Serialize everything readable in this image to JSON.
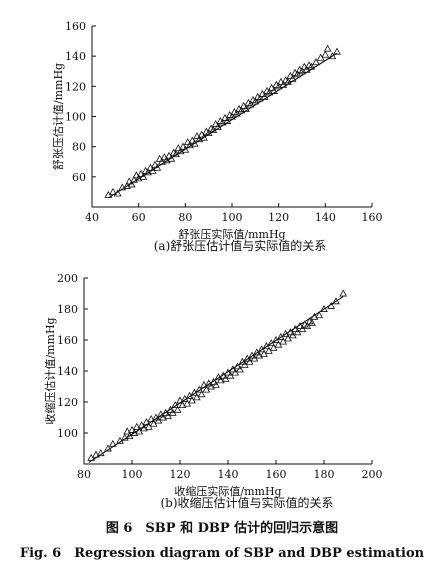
{
  "caption_cn": "图 6　SBP 和 DBP 估计的回归示意图",
  "caption_en": "Fig. 6　Regression diagram of SBP and DBP estimation",
  "chart_data": [
    {
      "type": "scatter",
      "panel_caption": "(a)舒张压估计值与实际值的关系",
      "xlabel": "舒张压实际值/mmHg",
      "ylabel": "舒张压估计值/mmHg",
      "xlim": [
        40,
        160
      ],
      "ylim": [
        40,
        160
      ],
      "xticks": [
        40,
        60,
        80,
        100,
        120,
        140,
        160
      ],
      "yticks": [
        60,
        80,
        100,
        120,
        140,
        160
      ],
      "marker": "triangle",
      "grid": false,
      "fit_line": {
        "x": [
          47,
          145
        ],
        "y": [
          46,
          142
        ]
      },
      "x": [
        47,
        49,
        51,
        53,
        55,
        56,
        57,
        58,
        59,
        60,
        61,
        62,
        63,
        64,
        65,
        66,
        67,
        68,
        69,
        70,
        71,
        72,
        73,
        74,
        75,
        76,
        77,
        78,
        79,
        80,
        81,
        82,
        83,
        84,
        85,
        86,
        87,
        88,
        89,
        90,
        91,
        92,
        93,
        94,
        95,
        96,
        97,
        98,
        99,
        100,
        101,
        102,
        103,
        104,
        105,
        106,
        107,
        108,
        109,
        110,
        111,
        112,
        113,
        114,
        115,
        116,
        117,
        118,
        119,
        120,
        121,
        122,
        123,
        124,
        125,
        126,
        127,
        128,
        129,
        130,
        131,
        132,
        133,
        134,
        136,
        138,
        140,
        141,
        143,
        145
      ],
      "y": [
        48,
        50,
        49,
        53,
        54,
        57,
        55,
        58,
        61,
        59,
        62,
        60,
        64,
        63,
        66,
        64,
        68,
        66,
        72,
        70,
        73,
        71,
        74,
        72,
        76,
        75,
        79,
        77,
        80,
        78,
        83,
        81,
        84,
        82,
        87,
        85,
        88,
        86,
        90,
        89,
        92,
        91,
        95,
        93,
        97,
        96,
        99,
        97,
        101,
        100,
        103,
        102,
        105,
        104,
        107,
        105,
        109,
        108,
        111,
        110,
        113,
        112,
        115,
        113,
        117,
        116,
        119,
        117,
        121,
        120,
        123,
        121,
        124,
        123,
        127,
        125,
        129,
        128,
        131,
        130,
        133,
        131,
        134,
        133,
        136,
        139,
        141,
        145,
        140,
        143
      ]
    },
    {
      "type": "scatter",
      "panel_caption": "(b)收缩压估计值与实际值的关系",
      "xlabel": "收缩压实际值/mmHg",
      "ylabel": "收缩压估计值/mmHg",
      "xlim": [
        80,
        200
      ],
      "ylim": [
        80,
        200
      ],
      "xticks": [
        80,
        100,
        120,
        140,
        160,
        180,
        200
      ],
      "yticks": [
        100,
        120,
        140,
        160,
        180,
        200
      ],
      "marker": "triangle",
      "grid": false,
      "fit_line": {
        "x": [
          82,
          188
        ],
        "y": [
          81,
          188
        ]
      },
      "x": [
        83,
        85,
        87,
        90,
        92,
        95,
        97,
        98,
        99,
        100,
        101,
        102,
        103,
        104,
        105,
        106,
        107,
        108,
        109,
        110,
        111,
        112,
        113,
        114,
        115,
        116,
        117,
        118,
        119,
        120,
        121,
        122,
        123,
        124,
        125,
        126,
        127,
        128,
        129,
        130,
        131,
        132,
        133,
        134,
        135,
        136,
        137,
        138,
        139,
        140,
        141,
        142,
        143,
        144,
        145,
        146,
        147,
        148,
        149,
        150,
        151,
        152,
        153,
        154,
        155,
        156,
        157,
        158,
        159,
        160,
        161,
        162,
        163,
        164,
        165,
        166,
        167,
        168,
        169,
        170,
        171,
        172,
        173,
        174,
        175,
        176,
        178,
        180,
        183,
        185,
        188
      ],
      "y": [
        84,
        86,
        87,
        90,
        93,
        95,
        97,
        101,
        98,
        102,
        100,
        104,
        101,
        105,
        103,
        107,
        104,
        109,
        106,
        110,
        108,
        112,
        110,
        113,
        111,
        115,
        113,
        118,
        115,
        121,
        118,
        122,
        119,
        124,
        121,
        126,
        123,
        128,
        125,
        131,
        128,
        132,
        130,
        133,
        131,
        136,
        134,
        137,
        135,
        139,
        137,
        141,
        139,
        143,
        141,
        146,
        144,
        148,
        146,
        150,
        148,
        152,
        150,
        154,
        151,
        156,
        153,
        158,
        155,
        160,
        157,
        162,
        159,
        164,
        161,
        165,
        163,
        167,
        165,
        169,
        167,
        170,
        169,
        172,
        171,
        175,
        176,
        180,
        182,
        185,
        190
      ]
    }
  ]
}
